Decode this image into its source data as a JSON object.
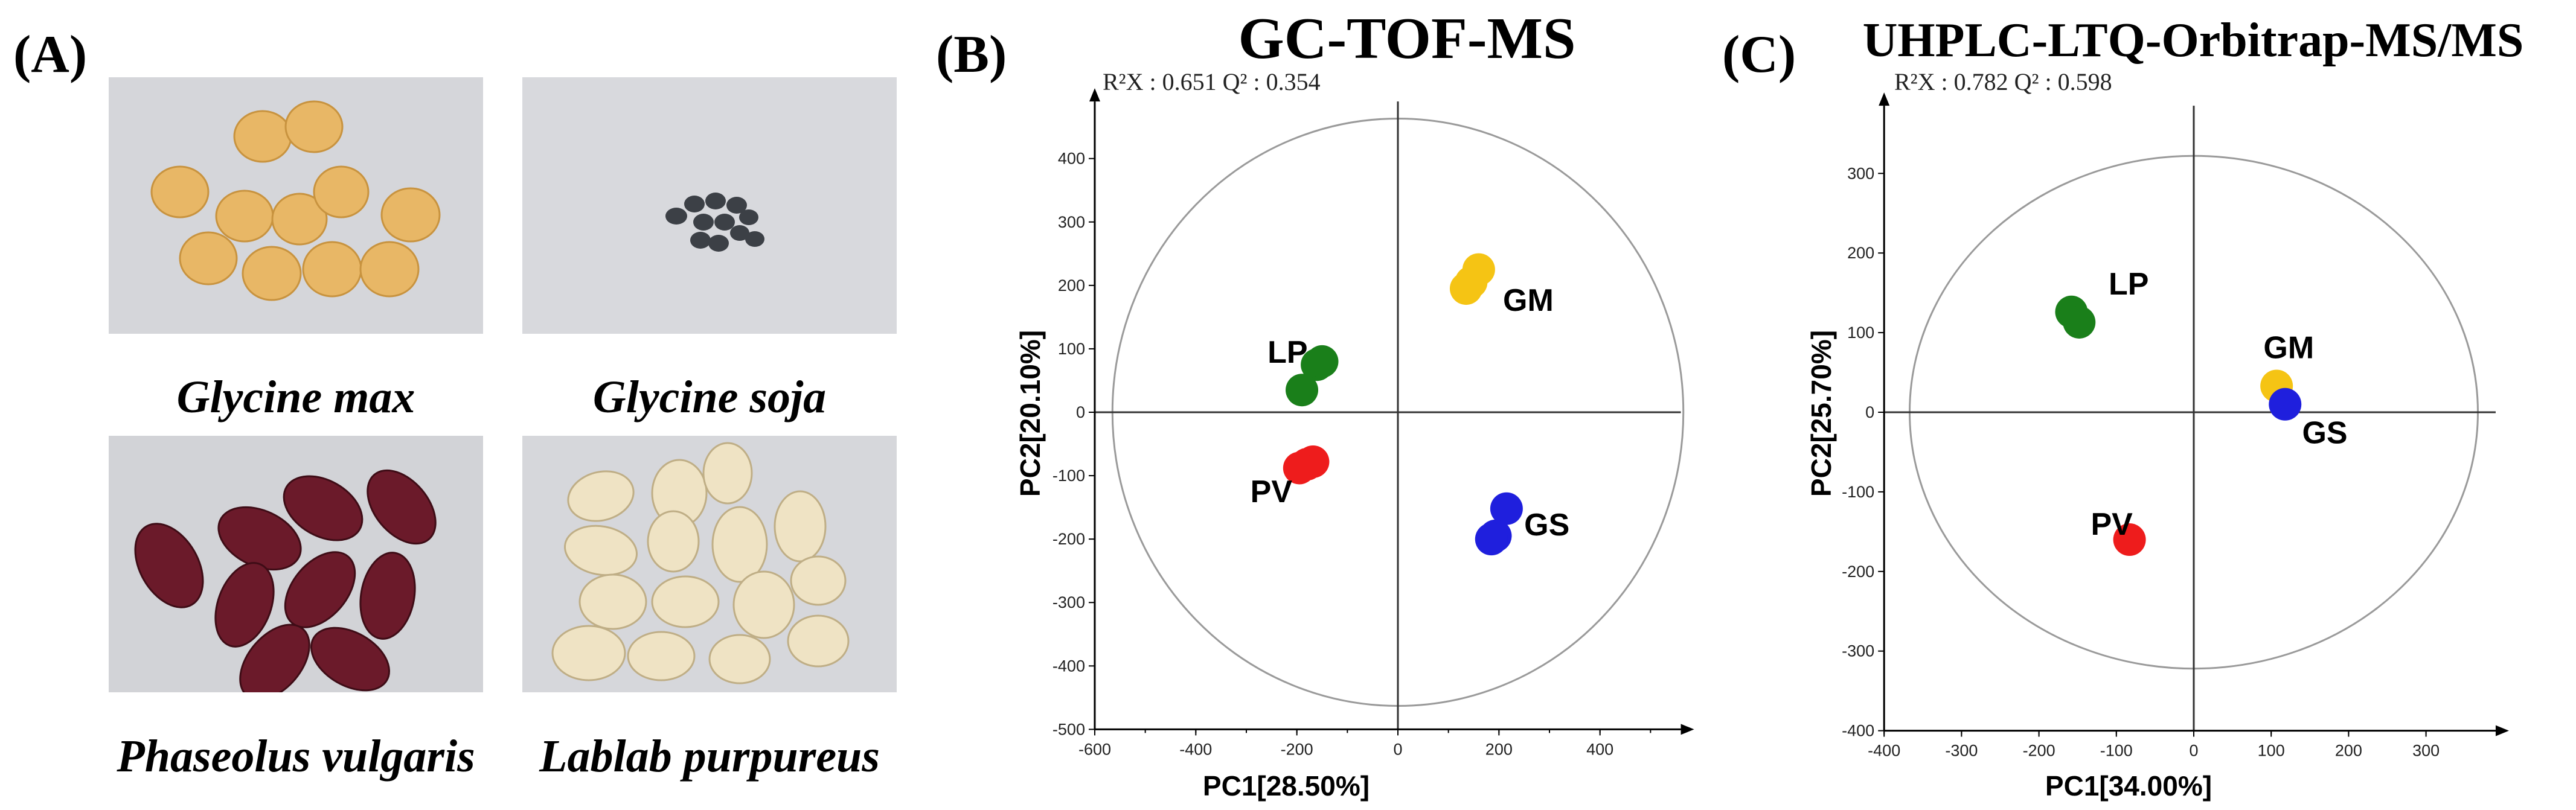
{
  "panel_a": {
    "letter": "(A)",
    "photos": [
      {
        "caption": "Glycine max",
        "background": "#d5d6da",
        "seed_color": "#e8b766"
      },
      {
        "caption": "Glycine soja",
        "background": "#d8d9dd",
        "seed_color": "#3c4046"
      },
      {
        "caption": "Phaseolus vulgaris",
        "background": "#d2d3d7",
        "seed_color": "#6b1a2a"
      },
      {
        "caption": "Lablab purpureus",
        "background": "#d6d7db",
        "seed_color": "#efe3c4"
      }
    ]
  },
  "panel_b": {
    "letter": "(B)",
    "title": "GC-TOF-MS",
    "stats": "R²X : 0.651 Q² : 0.354",
    "x_ticks": [
      "-600",
      "-400",
      "-200",
      "0",
      "200",
      "400"
    ],
    "y_ticks": [
      "400",
      "300",
      "200",
      "100",
      "0",
      "-100",
      "-200",
      "-300",
      "-400",
      "-500"
    ]
  },
  "panel_c": {
    "letter": "(C)",
    "title": "UHPLC-LTQ-Orbitrap-MS/MS",
    "stats": "R²X : 0.782 Q² : 0.598",
    "x_ticks": [
      "-400",
      "-300",
      "-200",
      "-100",
      "0",
      "100",
      "200",
      "300"
    ],
    "y_ticks": [
      "300",
      "200",
      "100",
      "0",
      "-100",
      "-200",
      "-300",
      "-400"
    ]
  },
  "chart_data": [
    {
      "type": "scatter",
      "title": "GC-TOF-MS",
      "xlabel": "PC1[28.50%]",
      "ylabel": "PC2[20.10%]",
      "xlim": [
        -600,
        560
      ],
      "ylim": [
        -500,
        490
      ],
      "ellipse": {
        "rx": 565,
        "ry": 463
      },
      "series": [
        {
          "name": "GM",
          "color": "#f5c414",
          "points": [
            [
              145,
              205
            ],
            [
              160,
              225
            ],
            [
              135,
              195
            ]
          ],
          "label_at": [
            208,
            160
          ]
        },
        {
          "name": "LP",
          "color": "#1a7f1a",
          "points": [
            [
              -160,
              75
            ],
            [
              -150,
              80
            ],
            [
              -190,
              35
            ]
          ],
          "label_at": [
            -258,
            78
          ]
        },
        {
          "name": "PV",
          "color": "#ee1c1c",
          "points": [
            [
              -180,
              -82
            ],
            [
              -168,
              -78
            ],
            [
              -195,
              -88
            ]
          ],
          "label_at": [
            -292,
            -142
          ]
        },
        {
          "name": "GS",
          "color": "#1f1fdd",
          "points": [
            [
              215,
              -152
            ],
            [
              193,
              -195
            ],
            [
              185,
              -200
            ]
          ],
          "label_at": [
            250,
            -194
          ]
        }
      ]
    },
    {
      "type": "scatter",
      "title": "UHPLC-LTQ-Orbitrap-MS/MS",
      "xlabel": "PC1[34.00%]",
      "ylabel": "PC2[25.70%]",
      "xlim": [
        -400,
        390
      ],
      "ylim": [
        -400,
        385
      ],
      "ellipse": {
        "rx": 367,
        "ry": 322
      },
      "series": [
        {
          "name": "GM",
          "color": "#f5c414",
          "points": [
            [
              107,
              33
            ]
          ],
          "label_at": [
            90,
            68
          ]
        },
        {
          "name": "LP",
          "color": "#1a7f1a",
          "points": [
            [
              -158,
              126
            ],
            [
              -148,
              113
            ]
          ],
          "label_at": [
            -110,
            148
          ]
        },
        {
          "name": "PV",
          "color": "#ee1c1c",
          "points": [
            [
              -83,
              -160
            ]
          ],
          "label_at": [
            -133,
            -154
          ]
        },
        {
          "name": "GS",
          "color": "#1f1fdd",
          "points": [
            [
              118,
              10
            ]
          ],
          "label_at": [
            140,
            -39
          ]
        }
      ]
    }
  ]
}
